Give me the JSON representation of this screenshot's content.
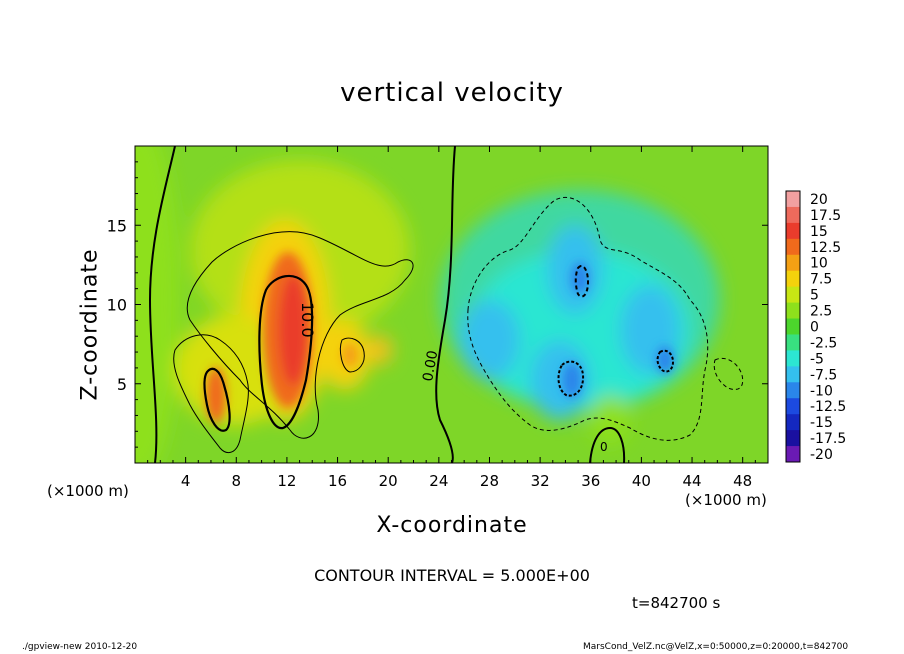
{
  "chart_data": {
    "type": "heatmap",
    "title": "vertical velocity",
    "xlabel": "X-coordinate",
    "ylabel": "Z-coordinate",
    "x_unit_label": "(×1000 m)",
    "x_unit_label_left": "(×1000 m)",
    "xlim": [
      0,
      50
    ],
    "ylim": [
      0,
      20
    ],
    "x_ticks": [
      4,
      8,
      12,
      16,
      20,
      24,
      28,
      32,
      36,
      40,
      44,
      48
    ],
    "y_ticks": [
      5,
      10,
      15
    ],
    "colorbar": {
      "labels": [
        "20",
        "17.5",
        "15",
        "12.5",
        "10",
        "7.5",
        "5",
        "2.5",
        "0",
        "-2.5",
        "-5",
        "-7.5",
        "-10",
        "-12.5",
        "-15",
        "-17.5",
        "-20"
      ],
      "colors": [
        "#f2a0a0",
        "#ee6a5c",
        "#ea3c2c",
        "#f06a1c",
        "#f4a014",
        "#f4d20c",
        "#c8e614",
        "#8ee01c",
        "#4cd62c",
        "#38e080",
        "#2ce6d2",
        "#34c0ee",
        "#2a86ea",
        "#1c4ae0",
        "#1428c0",
        "#1a10a0",
        "#6a1ab4"
      ]
    },
    "contour_labels": [
      "10.0",
      "0.00",
      "0"
    ],
    "contour_interval_text": "CONTOUR INTERVAL = 5.000E+00",
    "time_text": "t=842700  s",
    "features": [
      {
        "kind": "updraft",
        "x": 12,
        "z": 7,
        "peak": 12.5
      },
      {
        "kind": "updraft",
        "x": 6,
        "z": 4.5,
        "peak": 10
      },
      {
        "kind": "downdraft",
        "x": 35,
        "z": 8,
        "peak": -10
      },
      {
        "kind": "downdraft",
        "x": 42,
        "z": 7,
        "peak": -7.5
      }
    ]
  },
  "footer": {
    "left": "./gpview-new   2010-12-20",
    "right": "MarsCond_VelZ.nc@VelZ,x=0:50000,z=0:20000,t=842700"
  }
}
